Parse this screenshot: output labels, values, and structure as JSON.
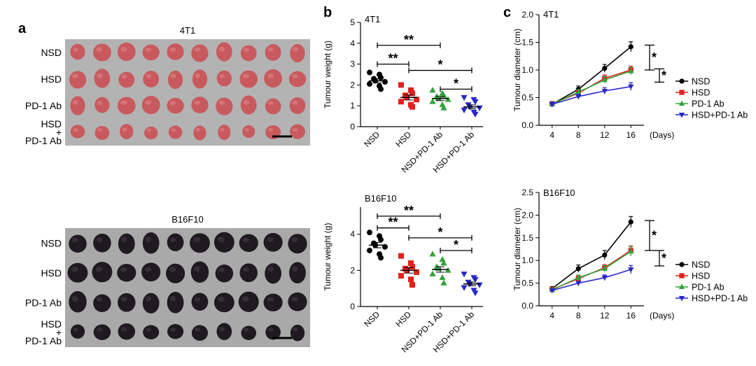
{
  "panels": {
    "a": {
      "label": "a",
      "photos": [
        {
          "title": "4T1",
          "rows": [
            "NSD",
            "HSD",
            "PD-1 Ab",
            "HSD\n+\nPD-1 Ab"
          ],
          "tumor_color": "#c85a5e",
          "background": "#b3b3b3"
        },
        {
          "title": "B16F10",
          "rows": [
            "NSD",
            "HSD",
            "PD-1 Ab",
            "HSD\n+\nPD-1 Ab"
          ],
          "tumor_color": "#1e1a20",
          "background": "#a9a9a9"
        }
      ]
    },
    "b": {
      "label": "b"
    },
    "c": {
      "label": "c"
    }
  },
  "chart_data": [
    {
      "id": "b-4T1",
      "type": "scatter",
      "title": "4T1",
      "ylabel": "Tumour weight (g)",
      "xlabel": "",
      "ylim": [
        0,
        5
      ],
      "yticks": [
        0,
        1,
        2,
        3,
        4,
        5
      ],
      "categories": [
        "NSD",
        "HSD",
        "NSD+PD-1 Ab",
        "HSD+PD-1 Ab"
      ],
      "series": [
        {
          "marker": "circle",
          "color": "#000000",
          "values": [
            2.6,
            2.5,
            2.35,
            2.3,
            2.2,
            2.15,
            2.05,
            1.95,
            1.8
          ],
          "mean": 2.2,
          "sem": 0.1
        },
        {
          "marker": "square",
          "color": "#e3201b",
          "values": [
            2.0,
            1.75,
            1.6,
            1.5,
            1.4,
            1.3,
            1.2,
            1.05,
            0.95
          ],
          "mean": 1.4,
          "sem": 0.12
        },
        {
          "marker": "triangle-up",
          "color": "#31a33a",
          "values": [
            1.75,
            1.6,
            1.5,
            1.45,
            1.35,
            1.3,
            1.2,
            1.05,
            0.9
          ],
          "mean": 1.35,
          "sem": 0.1
        },
        {
          "marker": "triangle-down",
          "color": "#2727c9",
          "values": [
            1.4,
            1.3,
            1.2,
            1.05,
            0.95,
            0.9,
            0.8,
            0.7,
            0.6
          ],
          "mean": 0.95,
          "sem": 0.09
        }
      ],
      "significance": [
        {
          "from": 0,
          "to": 2,
          "y": 3.9,
          "label": "**"
        },
        {
          "from": 0,
          "to": 1,
          "y": 3.0,
          "label": "**"
        },
        {
          "from": 1,
          "to": 3,
          "y": 2.7,
          "label": "*"
        },
        {
          "from": 2,
          "to": 3,
          "y": 1.8,
          "label": "*"
        }
      ]
    },
    {
      "id": "b-B16F10",
      "type": "scatter",
      "title": "B16F10",
      "ylabel": "Tumour weight (g)",
      "xlabel": "",
      "ylim": [
        0,
        5.5
      ],
      "yticks": [
        0,
        2,
        4
      ],
      "categories": [
        "NSD",
        "HSD",
        "NSD+PD-1 Ab",
        "HSD+PD-1 Ab"
      ],
      "series": [
        {
          "marker": "circle",
          "color": "#000000",
          "values": [
            4.1,
            3.9,
            3.7,
            3.5,
            3.4,
            3.3,
            3.1,
            2.9,
            2.7
          ],
          "mean": 3.4,
          "sem": 0.15
        },
        {
          "marker": "square",
          "color": "#e3201b",
          "values": [
            2.8,
            2.4,
            2.2,
            2.1,
            2.0,
            1.9,
            1.7,
            1.5,
            1.2
          ],
          "mean": 2.0,
          "sem": 0.15
        },
        {
          "marker": "triangle-up",
          "color": "#31a33a",
          "values": [
            2.9,
            2.6,
            2.4,
            2.2,
            2.1,
            2.0,
            1.8,
            1.6,
            1.3
          ],
          "mean": 2.05,
          "sem": 0.15
        },
        {
          "marker": "triangle-down",
          "color": "#2727c9",
          "values": [
            1.8,
            1.6,
            1.5,
            1.35,
            1.25,
            1.2,
            1.05,
            0.9,
            0.75
          ],
          "mean": 1.25,
          "sem": 0.1
        }
      ],
      "significance": [
        {
          "from": 0,
          "to": 2,
          "y": 5.0,
          "label": "**"
        },
        {
          "from": 0,
          "to": 1,
          "y": 4.35,
          "label": "**"
        },
        {
          "from": 1,
          "to": 3,
          "y": 3.8,
          "label": "*"
        },
        {
          "from": 2,
          "to": 3,
          "y": 3.1,
          "label": "*"
        }
      ]
    },
    {
      "id": "c-4T1",
      "type": "line",
      "title": "4T1",
      "ylabel": "Tumour diameter (cm)",
      "xlabel": "(Days)",
      "x": [
        4,
        8,
        12,
        16
      ],
      "xlim": [
        2,
        18
      ],
      "ylim": [
        0,
        2.0
      ],
      "yticks": [
        0.0,
        0.5,
        1.0,
        1.5,
        2.0
      ],
      "series": [
        {
          "name": "NSD",
          "marker": "circle",
          "color": "#000000",
          "values": [
            0.38,
            0.65,
            1.03,
            1.42
          ],
          "err": [
            0.04,
            0.06,
            0.07,
            0.09
          ]
        },
        {
          "name": "HSD",
          "marker": "square",
          "color": "#e3201b",
          "values": [
            0.39,
            0.58,
            0.85,
            1.0
          ],
          "err": [
            0.04,
            0.05,
            0.06,
            0.07
          ]
        },
        {
          "name": "PD-1 Ab",
          "marker": "triangle-up",
          "color": "#31a33a",
          "values": [
            0.38,
            0.6,
            0.82,
            0.98
          ],
          "err": [
            0.04,
            0.05,
            0.06,
            0.07
          ]
        },
        {
          "name": "HSD+PD-1 Ab",
          "marker": "triangle-down",
          "color": "#2727c9",
          "values": [
            0.38,
            0.52,
            0.62,
            0.7
          ],
          "err": [
            0.04,
            0.04,
            0.06,
            0.07
          ]
        }
      ],
      "significance": [
        {
          "y_top": 1.45,
          "y_bottom": 1.0,
          "label": "*"
        },
        {
          "y_top": 1.02,
          "y_bottom": 0.78,
          "label": "*"
        }
      ]
    },
    {
      "id": "c-B16F10",
      "type": "line",
      "title": "B16F10",
      "ylabel": "Tumour diameter (cm)",
      "xlabel": "(Days)",
      "x": [
        4,
        8,
        12,
        16
      ],
      "xlim": [
        2,
        18
      ],
      "ylim": [
        0,
        2.5
      ],
      "yticks": [
        0.0,
        0.5,
        1.0,
        1.5,
        2.0,
        2.5
      ],
      "series": [
        {
          "name": "NSD",
          "marker": "circle",
          "color": "#000000",
          "values": [
            0.38,
            0.82,
            1.12,
            1.85
          ],
          "err": [
            0.04,
            0.08,
            0.1,
            0.12
          ]
        },
        {
          "name": "HSD",
          "marker": "square",
          "color": "#e3201b",
          "values": [
            0.36,
            0.6,
            0.84,
            1.22
          ],
          "err": [
            0.04,
            0.06,
            0.07,
            0.1
          ]
        },
        {
          "name": "PD-1 Ab",
          "marker": "triangle-up",
          "color": "#31a33a",
          "values": [
            0.35,
            0.62,
            0.82,
            1.2
          ],
          "err": [
            0.04,
            0.06,
            0.07,
            0.1
          ]
        },
        {
          "name": "HSD+PD-1 Ab",
          "marker": "triangle-down",
          "color": "#2727c9",
          "values": [
            0.34,
            0.5,
            0.62,
            0.8
          ],
          "err": [
            0.03,
            0.04,
            0.06,
            0.09
          ]
        }
      ],
      "significance": [
        {
          "y_top": 1.88,
          "y_bottom": 1.22,
          "label": "*"
        },
        {
          "y_top": 1.22,
          "y_bottom": 0.88,
          "label": "*"
        }
      ]
    }
  ]
}
